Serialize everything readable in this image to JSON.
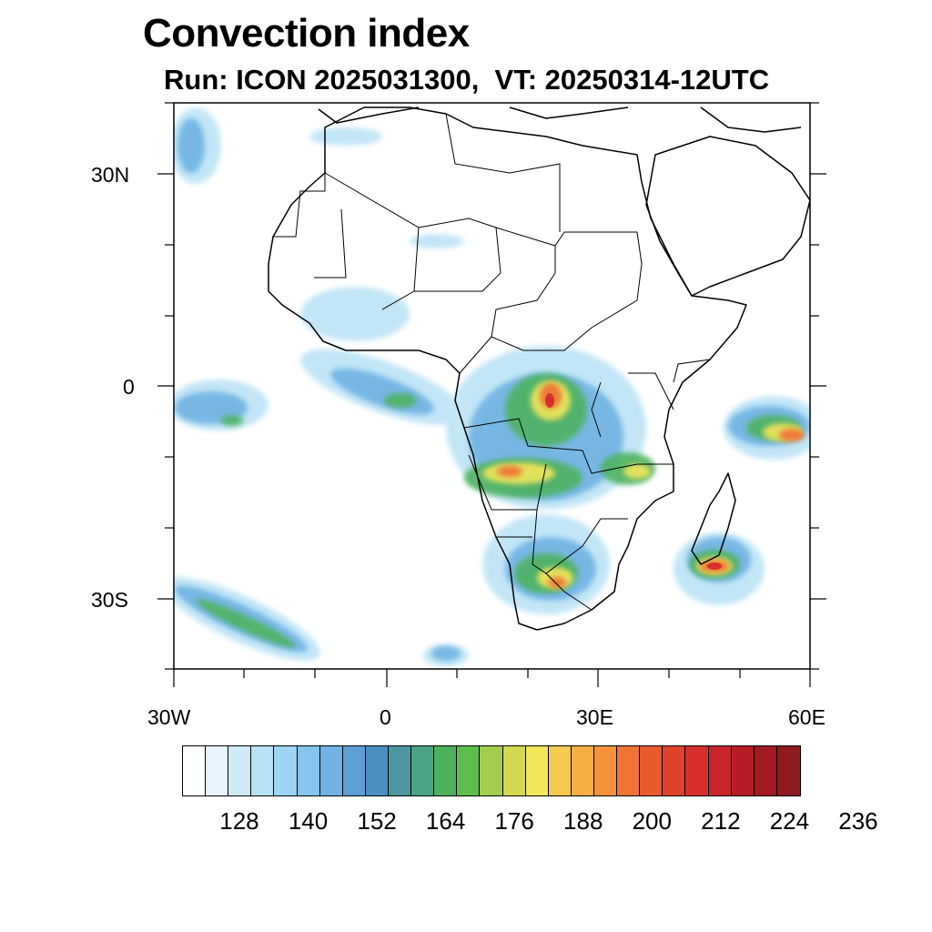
{
  "title": "Convection index",
  "subtitle": "Run: ICON 2025031300,  VT: 20250314-12UTC",
  "axes": {
    "y_labels": [
      "30N",
      "0",
      "30S"
    ],
    "x_labels": [
      "30W",
      "0",
      "30E",
      "60E"
    ]
  },
  "colorbar": {
    "colors": [
      "#ffffff",
      "#e8f4fb",
      "#d0ebf8",
      "#b8e2f5",
      "#9dd5f2",
      "#86c5ec",
      "#6fb2e3",
      "#5a9fd6",
      "#4a8ec2",
      "#4a97a0",
      "#4aa484",
      "#4db25e",
      "#5cbd4c",
      "#a2cd4d",
      "#d2da52",
      "#f2e65a",
      "#f7c94f",
      "#f7ae45",
      "#f6913c",
      "#f07435",
      "#e85a2e",
      "#e0432c",
      "#d7302c",
      "#c92429",
      "#b71c25",
      "#a31a21",
      "#8f1b1e"
    ],
    "labels": [
      "128",
      "140",
      "152",
      "164",
      "176",
      "188",
      "200",
      "212",
      "224",
      "236"
    ]
  },
  "map": {
    "lon_range": [
      -30,
      60
    ],
    "lat_range": [
      -40,
      40
    ],
    "convection_cells": [
      {
        "lon": 21,
        "lat": -1,
        "value": 224
      },
      {
        "lon": 24,
        "lat": -3,
        "value": 212
      },
      {
        "lon": 20,
        "lat": -12,
        "value": 200
      },
      {
        "lon": 27,
        "lat": -12,
        "value": 206
      },
      {
        "lon": 15,
        "lat": -14,
        "value": 190
      },
      {
        "lon": 46,
        "lat": -25,
        "value": 224
      },
      {
        "lon": 55,
        "lat": -6,
        "value": 212
      },
      {
        "lon": 25,
        "lat": -28,
        "value": 212
      },
      {
        "lon": 0,
        "lat": -2,
        "value": 188
      },
      {
        "lon": -24,
        "lat": -5,
        "value": 176
      },
      {
        "lon": -22,
        "lat": -34,
        "value": 176
      }
    ]
  }
}
